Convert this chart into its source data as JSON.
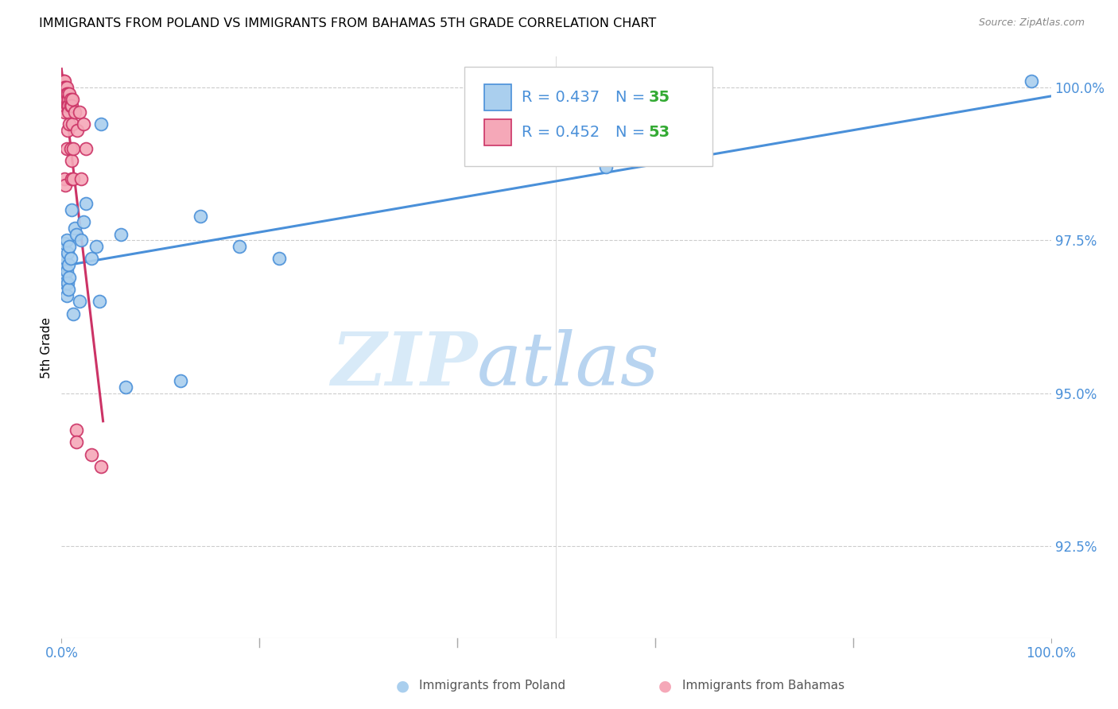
{
  "title": "IMMIGRANTS FROM POLAND VS IMMIGRANTS FROM BAHAMAS 5TH GRADE CORRELATION CHART",
  "source": "Source: ZipAtlas.com",
  "ylabel": "5th Grade",
  "xlim": [
    0.0,
    1.0
  ],
  "ylim": [
    0.91,
    1.005
  ],
  "y_ticks": [
    0.925,
    0.95,
    0.975,
    1.0
  ],
  "y_tick_labels": [
    "92.5%",
    "95.0%",
    "97.5%",
    "100.0%"
  ],
  "poland_R": 0.437,
  "poland_N": 35,
  "bahamas_R": 0.452,
  "bahamas_N": 53,
  "poland_color": "#aacfee",
  "bahamas_color": "#f5a8b8",
  "poland_line_color": "#4a90d9",
  "bahamas_line_color": "#cc3366",
  "legend_R_color": "#4a90d9",
  "legend_N_color": "#33aa33",
  "poland_x": [
    0.003,
    0.003,
    0.003,
    0.004,
    0.004,
    0.005,
    0.005,
    0.005,
    0.006,
    0.006,
    0.007,
    0.007,
    0.008,
    0.008,
    0.009,
    0.01,
    0.012,
    0.013,
    0.015,
    0.018,
    0.02,
    0.022,
    0.025,
    0.03,
    0.035,
    0.038,
    0.04,
    0.06,
    0.065,
    0.12,
    0.14,
    0.18,
    0.22,
    0.55,
    0.98
  ],
  "poland_y": [
    0.9745,
    0.971,
    0.969,
    0.972,
    0.968,
    0.975,
    0.97,
    0.966,
    0.973,
    0.968,
    0.971,
    0.967,
    0.974,
    0.969,
    0.972,
    0.98,
    0.963,
    0.977,
    0.976,
    0.965,
    0.975,
    0.978,
    0.981,
    0.972,
    0.974,
    0.965,
    0.994,
    0.976,
    0.951,
    0.952,
    0.979,
    0.974,
    0.972,
    0.987,
    1.001
  ],
  "bahamas_x": [
    0.001,
    0.001,
    0.001,
    0.001,
    0.002,
    0.002,
    0.002,
    0.002,
    0.002,
    0.003,
    0.003,
    0.003,
    0.003,
    0.003,
    0.003,
    0.003,
    0.004,
    0.004,
    0.004,
    0.004,
    0.004,
    0.005,
    0.005,
    0.005,
    0.005,
    0.006,
    0.006,
    0.006,
    0.007,
    0.007,
    0.007,
    0.008,
    0.008,
    0.009,
    0.009,
    0.009,
    0.01,
    0.01,
    0.01,
    0.011,
    0.011,
    0.012,
    0.012,
    0.013,
    0.015,
    0.015,
    0.016,
    0.018,
    0.02,
    0.022,
    0.025,
    0.03,
    0.04
  ],
  "bahamas_y": [
    1.001,
    1.0,
    0.999,
    0.998,
    1.001,
    1.0,
    0.999,
    0.998,
    0.997,
    1.001,
    1.0,
    0.999,
    0.998,
    0.997,
    0.996,
    0.985,
    1.0,
    0.999,
    0.998,
    0.997,
    0.984,
    1.0,
    0.999,
    0.998,
    0.99,
    0.999,
    0.997,
    0.993,
    0.998,
    0.997,
    0.996,
    0.999,
    0.994,
    0.998,
    0.997,
    0.99,
    0.997,
    0.988,
    0.985,
    0.998,
    0.994,
    0.99,
    0.985,
    0.996,
    0.944,
    0.942,
    0.993,
    0.996,
    0.985,
    0.994,
    0.99,
    0.94,
    0.938
  ],
  "background_color": "#ffffff",
  "grid_color": "#cccccc",
  "watermark_zip": "ZIP",
  "watermark_atlas": "atlas",
  "watermark_color_zip": "#d8eaf8",
  "watermark_color_atlas": "#b8d4f0"
}
